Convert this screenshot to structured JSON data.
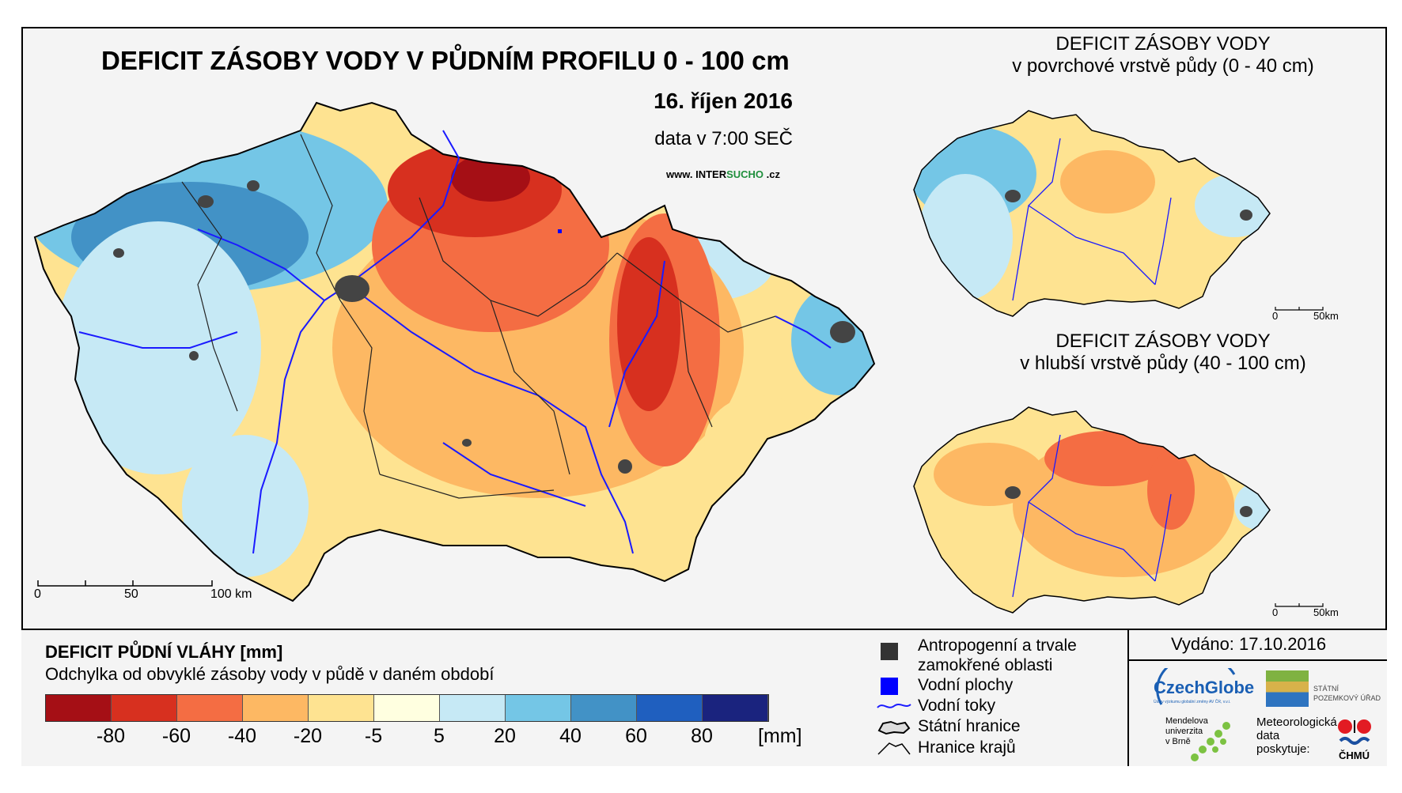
{
  "main": {
    "title": "DEFICIT ZÁSOBY VODY V PŮDNÍM PROFILU 0 - 100 cm",
    "date": "16. říjen 2016",
    "data_time": "data v 7:00 SEČ",
    "website_prefix": "www. INTER",
    "website_accent": "SUCHO",
    "website_suffix": " .cz",
    "scale": {
      "t0": "0",
      "t1": "50",
      "t2": "100 km"
    }
  },
  "inset_top": {
    "title1": "DEFICIT ZÁSOBY VODY",
    "title2": "v povrchové vrstvě půdy (0 - 40 cm)",
    "scale0": "0",
    "scale1": "50km"
  },
  "inset_bottom": {
    "title1": "DEFICIT ZÁSOBY VODY",
    "title2": "v hlubší vrstvě půdy (40 - 100 cm)",
    "scale0": "0",
    "scale1": "50km"
  },
  "legend": {
    "title": "DEFICIT PŮDNÍ VLÁHY [mm]",
    "subtitle": "Odchylka od obvyklé zásoby vody v půdě v daném období",
    "colors": [
      "#a50f15",
      "#d7301f",
      "#f46d43",
      "#fdb863",
      "#fee391",
      "#ffffe0",
      "#c6e9f5",
      "#74c6e6",
      "#4292c6",
      "#1f5fbf",
      "#1a237e"
    ],
    "ticks": [
      "-80",
      "-60",
      "-40",
      "-20",
      "-5",
      "5",
      "20",
      "40",
      "60",
      "80"
    ],
    "unit": "[mm]"
  },
  "symbols": {
    "anthropogenic": "Antropogenní a trvale",
    "anthropogenic2": "zamokřené oblasti",
    "water_bodies": "Vodní plochy",
    "streams": "Vodní toky",
    "state_border": "Státní hranice",
    "region_border": "Hranice krajů",
    "colors": {
      "anthropogenic": "#333333",
      "water": "#0000ff",
      "stream": "#1a1aff"
    }
  },
  "credits": {
    "issued": "Vydáno: 17.10.2016",
    "czechglobe": "CzechGlobe",
    "czechglobe_sub": "Ústav výzkumu globální změny AV ČR, v.v.i.",
    "spu1": "STÁTNÍ",
    "spu2": "POZEMKOVÝ ÚŘAD",
    "mendel1": "Mendelova",
    "mendel2": "univerzita",
    "mendel3": "v Brně",
    "met1": "Meteorologická",
    "met2": "data",
    "met3": "poskytuje:",
    "chmu": "ČHMÚ"
  }
}
